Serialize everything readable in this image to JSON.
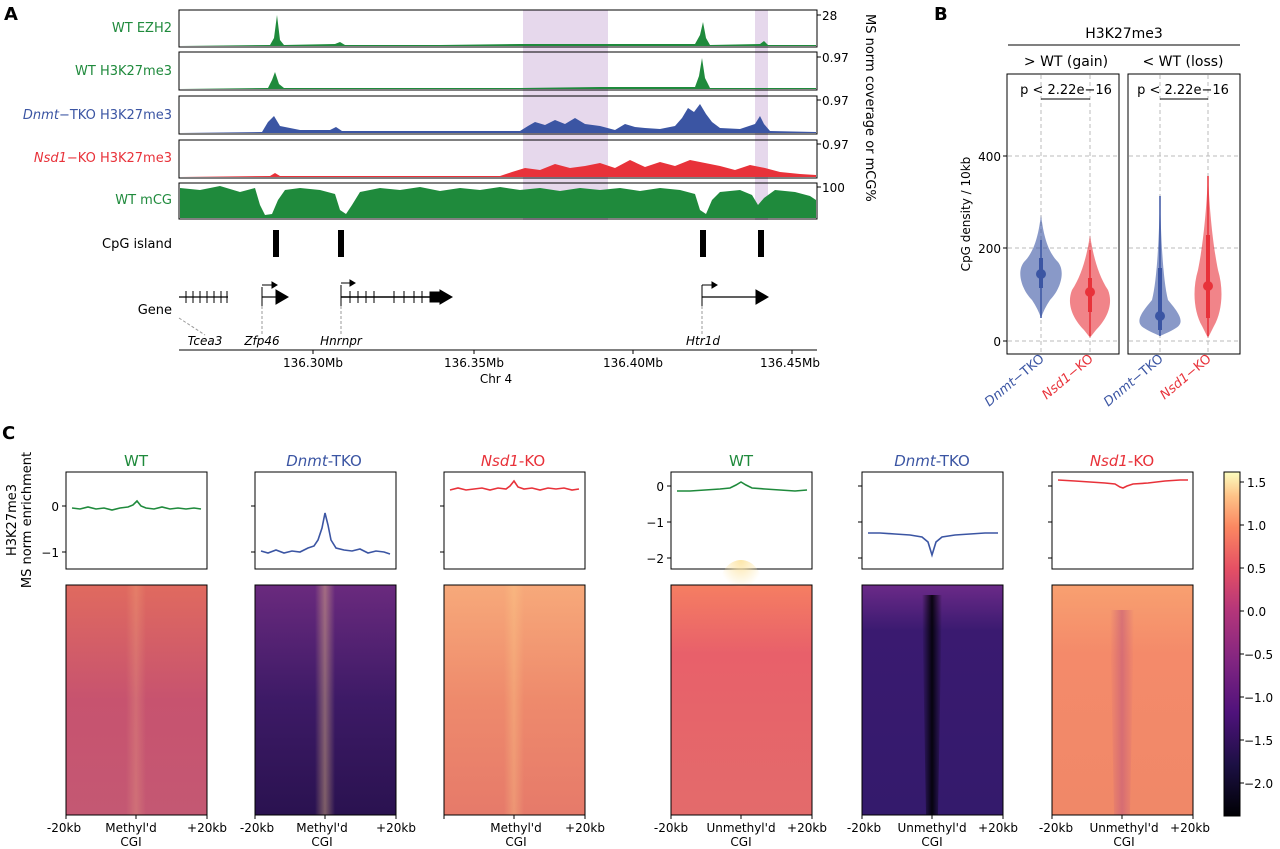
{
  "panels": {
    "a": "A",
    "b": "B",
    "c": "C"
  },
  "colors": {
    "wt": "#1f8a3c",
    "tko": "#3b55a3",
    "nsd1": "#e8323a",
    "gray": "#999999"
  },
  "panel_a": {
    "tracks": [
      {
        "prefix": "",
        "label": "WT EZH2",
        "color": "#1f8a3c",
        "max": "28"
      },
      {
        "prefix": "",
        "label": "WT H3K27me3",
        "color": "#1f8a3c",
        "max": "0.97"
      },
      {
        "prefix": "Dnmt",
        "label": "−TKO H3K27me3",
        "color": "#3b55a3",
        "max": "0.97"
      },
      {
        "prefix": "Nsd1",
        "label": "−KO H3K27me3",
        "color": "#e8323a",
        "max": "0.97"
      },
      {
        "prefix": "",
        "label": "WT mCG",
        "color": "#1f8a3c",
        "max": "100"
      }
    ],
    "right_axis_label": "MS norm coverage or mCG%",
    "cpg_label": "CpG island",
    "gene_label": "Gene",
    "genes": [
      "Tcea3",
      "Zfp46",
      "Hnrnpr",
      "Htr1d"
    ],
    "xticks": [
      "136.30Mb",
      "136.35Mb",
      "136.40Mb",
      "136.45Mb"
    ],
    "xlabel": "Chr 4"
  },
  "panel_b": {
    "title": "H3K27me3",
    "facets": [
      "> WT (gain)",
      "< WT (loss)"
    ],
    "pvalue": "p < 2.22e−16",
    "ylabel": "CpG density / 10kb",
    "yticks": [
      "0",
      "200",
      "400"
    ],
    "xticks": [
      {
        "italic": "Dnmt",
        "rest": "−TKO"
      },
      {
        "italic": "Nsd1",
        "rest": "−KO"
      },
      {
        "italic": "Dnmt",
        "rest": "−TKO"
      },
      {
        "italic": "Nsd1",
        "rest": "−KO"
      }
    ]
  },
  "panel_c": {
    "ylabel_1": "H3K27me3",
    "ylabel_2": "MS norm enrichment",
    "titles": [
      {
        "italic": "",
        "rest": "WT"
      },
      {
        "italic": "Dnmt",
        "rest": "-TKO"
      },
      {
        "italic": "Nsd1",
        "rest": "-KO"
      },
      {
        "italic": "",
        "rest": "WT"
      },
      {
        "italic": "Dnmt",
        "rest": "-TKO"
      },
      {
        "italic": "Nsd1",
        "rest": "-KO"
      }
    ],
    "left_yticks": [
      "0",
      "−1"
    ],
    "right_yticks": [
      "0",
      "−1",
      "−2"
    ],
    "x_left": "-20kb",
    "x_right": "+20kb",
    "methyl_1": "Methyl'd",
    "unmethyl_1": "Unmethyl'd",
    "x_cgi": "CGI",
    "colorbar_ticks": [
      "1.5",
      "1.0",
      "0.5",
      "0.0",
      "−0.5",
      "−1.0",
      "−1.5",
      "−2.0"
    ]
  }
}
